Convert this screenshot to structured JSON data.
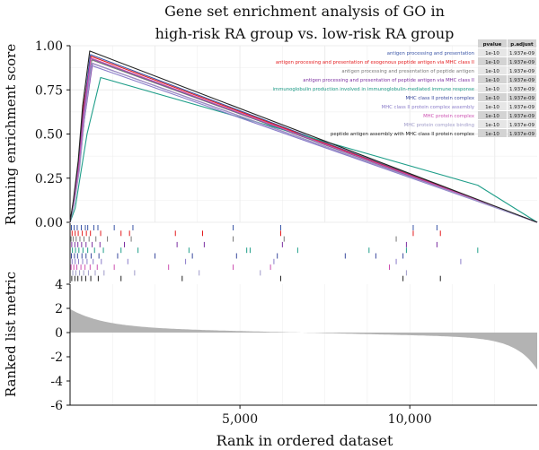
{
  "chart_data": {
    "type": "line",
    "title_line1": "Gene set enrichment analysis of GO in",
    "title_line2": "high-risk RA group vs. low-risk RA group",
    "xlabel": "Rank in ordered dataset",
    "x_ticks": [
      5000,
      10000
    ],
    "x_tick_labels": [
      "5,000",
      "10,000"
    ],
    "xlim": [
      0,
      13750
    ],
    "running": {
      "ylabel": "Running enrichment score",
      "ylim": [
        0,
        1
      ],
      "y_ticks": [
        0,
        0.25,
        0.5,
        0.75,
        1.0
      ],
      "y_tick_labels": [
        "0.00",
        "0.25",
        "0.50",
        "0.75",
        "1.00"
      ],
      "grid": true
    },
    "ranked": {
      "ylabel": "Ranked list metric",
      "ylim": [
        -6,
        4
      ],
      "y_ticks": [
        4,
        2,
        0,
        -2,
        -4,
        -6
      ],
      "y_tick_labels": [
        "4",
        "2",
        "0",
        "-2",
        "-4",
        "-6"
      ],
      "fill_color": "#b3b3b3"
    },
    "table_headers": [
      "pvalue",
      "p.adjust"
    ],
    "series": [
      {
        "name": "antigen processing and presentation",
        "color": "#3a55a6",
        "pvalue": "1e-10",
        "padjust": "1.937e-09",
        "points": [
          [
            0,
            0
          ],
          [
            100,
            0.12
          ],
          [
            250,
            0.33
          ],
          [
            380,
            0.62
          ],
          [
            600,
            0.95
          ],
          [
            13750,
            0
          ]
        ]
      },
      {
        "name": "antigen processing and presentation of exogenous peptide antigen via MHC class II",
        "color": "#e41a1c",
        "pvalue": "1e-10",
        "padjust": "1.937e-09",
        "points": [
          [
            0,
            0
          ],
          [
            100,
            0.12
          ],
          [
            250,
            0.34
          ],
          [
            380,
            0.64
          ],
          [
            620,
            0.94
          ],
          [
            13750,
            0
          ]
        ]
      },
      {
        "name": "antigen processing and presentation of peptide antigen",
        "color": "#777777",
        "pvalue": "1e-10",
        "padjust": "1.937e-09",
        "points": [
          [
            0,
            0
          ],
          [
            100,
            0.1
          ],
          [
            260,
            0.31
          ],
          [
            400,
            0.6
          ],
          [
            640,
            0.92
          ],
          [
            13750,
            0
          ]
        ]
      },
      {
        "name": "antigen processing and presentation of peptide antigen via MHC class II",
        "color": "#7b2fa0",
        "pvalue": "1e-10",
        "padjust": "1.937e-09",
        "points": [
          [
            0,
            0
          ],
          [
            120,
            0.1
          ],
          [
            270,
            0.3
          ],
          [
            420,
            0.58
          ],
          [
            660,
            0.9
          ],
          [
            13750,
            0
          ]
        ]
      },
      {
        "name": "immunoglobulin production involved in immunoglobulin-mediated immune response",
        "color": "#1f9e89",
        "pvalue": "1e-10",
        "padjust": "1.937e-09",
        "points": [
          [
            0,
            0
          ],
          [
            150,
            0.08
          ],
          [
            300,
            0.26
          ],
          [
            500,
            0.5
          ],
          [
            900,
            0.82
          ],
          [
            12000,
            0.21
          ],
          [
            13750,
            0
          ]
        ]
      },
      {
        "name": "MHC class II protein complex",
        "color": "#3b4a9e",
        "pvalue": "1e-10",
        "padjust": "1.937e-09",
        "points": [
          [
            0,
            0
          ],
          [
            100,
            0.11
          ],
          [
            250,
            0.32
          ],
          [
            380,
            0.6
          ],
          [
            590,
            0.93
          ],
          [
            13750,
            0
          ]
        ]
      },
      {
        "name": "MHC class II protein complex assembly",
        "color": "#8a7cc9",
        "pvalue": "1e-10",
        "padjust": "1.937e-09",
        "points": [
          [
            0,
            0
          ],
          [
            110,
            0.1
          ],
          [
            260,
            0.3
          ],
          [
            400,
            0.57
          ],
          [
            600,
            0.89
          ],
          [
            13750,
            0
          ]
        ]
      },
      {
        "name": "MHC protein complex",
        "color": "#cc4fb0",
        "pvalue": "1e-10",
        "padjust": "1.937e-09",
        "points": [
          [
            0,
            0
          ],
          [
            110,
            0.11
          ],
          [
            260,
            0.32
          ],
          [
            400,
            0.61
          ],
          [
            610,
            0.93
          ],
          [
            13750,
            0
          ]
        ]
      },
      {
        "name": "MHC protein complex binding",
        "color": "#9e9ac8",
        "pvalue": "1e-10",
        "padjust": "1.937e-09",
        "points": [
          [
            0,
            0
          ],
          [
            120,
            0.1
          ],
          [
            280,
            0.3
          ],
          [
            420,
            0.58
          ],
          [
            640,
            0.9
          ],
          [
            13750,
            0
          ]
        ]
      },
      {
        "name": "peptide antigen assembly with MHC class II protein complex",
        "color": "#222222",
        "pvalue": "1e-10",
        "padjust": "1.937e-09",
        "points": [
          [
            0,
            0
          ],
          [
            100,
            0.13
          ],
          [
            240,
            0.35
          ],
          [
            370,
            0.66
          ],
          [
            580,
            0.97
          ],
          [
            13750,
            0
          ]
        ]
      }
    ],
    "hit_ranks": [
      [
        40,
        120,
        210,
        330,
        450,
        520,
        700,
        820,
        1300,
        1850,
        4800,
        6200,
        10100,
        10800
      ],
      [
        60,
        150,
        240,
        360,
        480,
        600,
        900,
        1500,
        1750,
        3100,
        3900,
        6200,
        10100,
        10900
      ],
      [
        30,
        90,
        180,
        290,
        410,
        560,
        760,
        1100,
        1800,
        4800,
        6300,
        9600
      ],
      [
        50,
        140,
        230,
        340,
        470,
        650,
        880,
        1600,
        3150,
        3950,
        6250,
        9900,
        10800
      ],
      [
        70,
        160,
        260,
        380,
        520,
        720,
        980,
        1500,
        2000,
        3500,
        5200,
        5300,
        6700,
        8800,
        9900,
        12000
      ],
      [
        40,
        130,
        220,
        350,
        470,
        620,
        850,
        1400,
        2500,
        3600,
        4900,
        6100,
        8100,
        9000,
        9800
      ],
      [
        60,
        150,
        250,
        370,
        500,
        680,
        920,
        1700,
        3400,
        6000,
        9600,
        11500
      ],
      [
        30,
        110,
        200,
        320,
        440,
        590,
        800,
        1300,
        2900,
        4800,
        5900,
        9400
      ],
      [
        80,
        170,
        280,
        400,
        540,
        740,
        1000,
        1900,
        3800,
        5600,
        9900
      ],
      [
        50,
        140,
        230,
        340,
        460,
        610,
        830,
        1500,
        3300,
        6200,
        9800,
        10900
      ]
    ]
  }
}
